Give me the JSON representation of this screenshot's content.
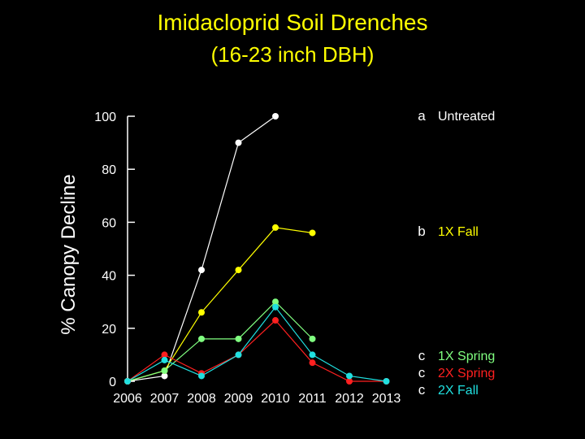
{
  "chart_data": {
    "type": "line",
    "title": "Imidacloprid Soil Drenches",
    "subtitle": "(16-23 inch DBH)",
    "ylabel": "% Canopy Decline",
    "xlabel": "",
    "x": [
      "2006",
      "2007",
      "2008",
      "2009",
      "2010",
      "2011",
      "2012",
      "2013"
    ],
    "ylim": [
      0,
      100
    ],
    "yticks": [
      0,
      20,
      40,
      60,
      80,
      100
    ],
    "grid": false,
    "legend_position": "right",
    "series": [
      {
        "name": "Untreated",
        "letter": "a",
        "color": "#ffffff",
        "values": [
          0,
          2,
          42,
          90,
          100,
          null,
          null,
          null
        ]
      },
      {
        "name": "1X Fall",
        "letter": "b",
        "color": "#ffff00",
        "values": [
          0,
          4,
          26,
          42,
          58,
          56,
          null,
          null
        ]
      },
      {
        "name": "1X Spring",
        "letter": "c",
        "color": "#80ff80",
        "values": [
          0,
          4,
          16,
          16,
          30,
          16,
          null,
          null
        ]
      },
      {
        "name": "2X Spring",
        "letter": "c",
        "color": "#ff2020",
        "values": [
          0,
          10,
          3,
          10,
          23,
          7,
          0,
          0
        ]
      },
      {
        "name": "2X Fall",
        "letter": "c",
        "color": "#20e0e0",
        "values": [
          0,
          8,
          2,
          10,
          28,
          10,
          2,
          0
        ]
      }
    ]
  }
}
